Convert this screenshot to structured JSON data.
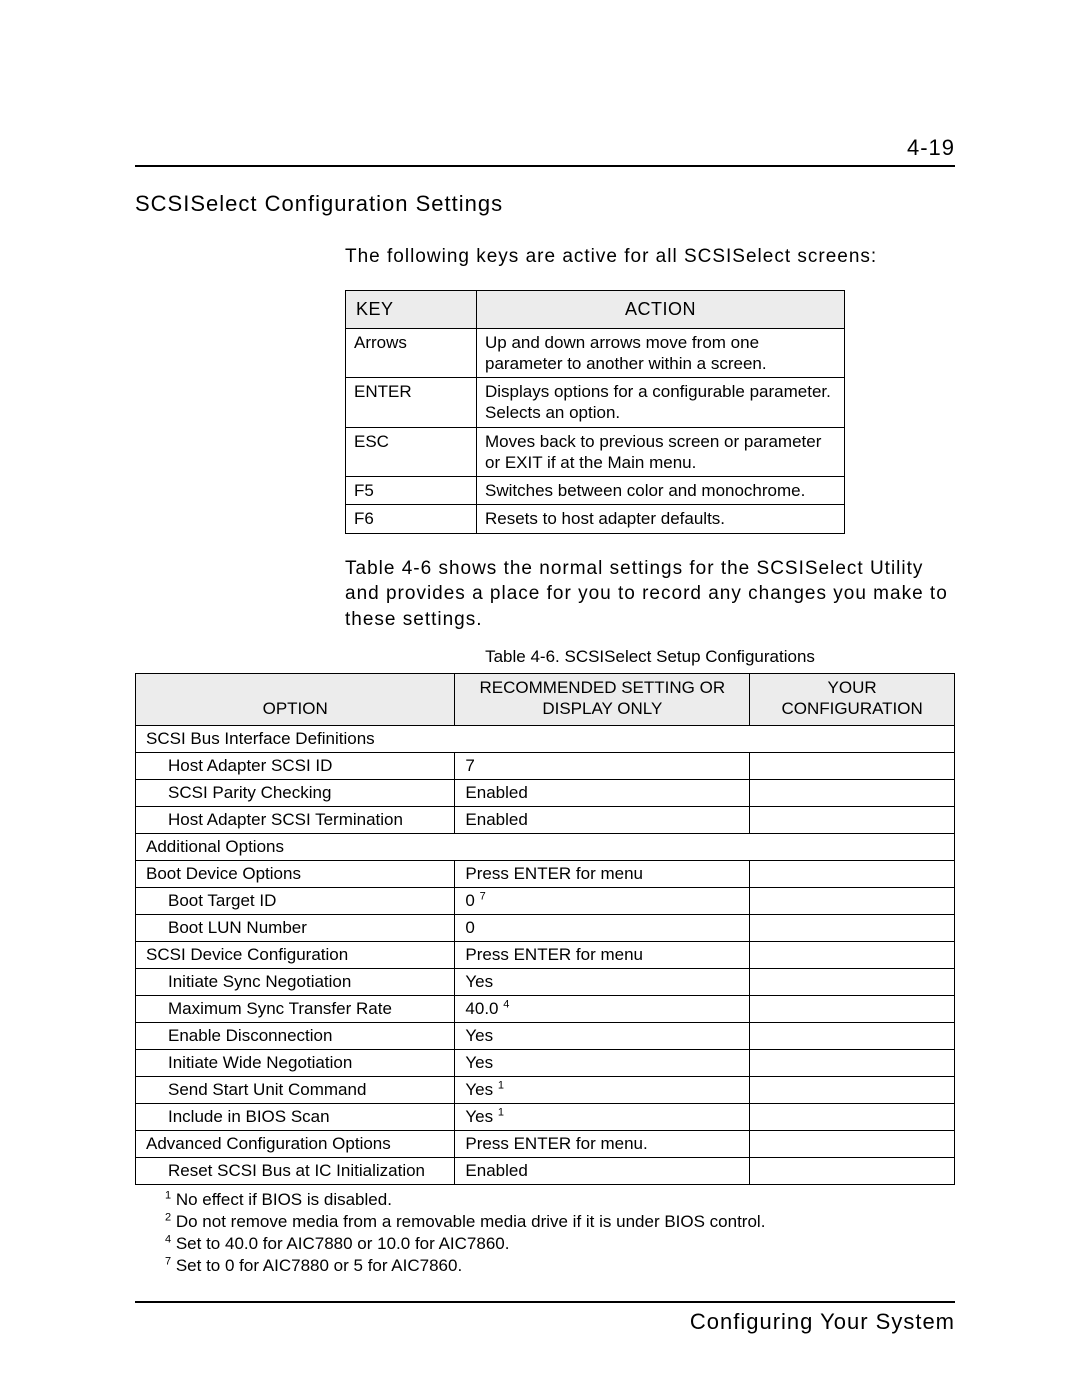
{
  "pageNumber": "4-19",
  "sectionTitle": "SCSISelect Configuration Settings",
  "introText": "The following keys are active for all SCSISelect screens:",
  "keyTable": {
    "headers": {
      "key": "KEY",
      "action": "ACTION"
    },
    "rows": [
      {
        "key": "Arrows",
        "action": "Up and down arrows move from one parameter to another within a screen."
      },
      {
        "key": "ENTER",
        "action": "Displays options for a configurable parameter. Selects an option."
      },
      {
        "key": "ESC",
        "action": "Moves back to previous screen or parameter or EXIT if at the Main menu."
      },
      {
        "key": "F5",
        "action": "Switches between color and monochrome."
      },
      {
        "key": "F6",
        "action": "Resets to host adapter defaults."
      }
    ]
  },
  "midText": "Table 4-6 shows the normal settings for the SCSISelect Utility and provides a place for you to record any changes you make to these settings.",
  "tableCaption": "Table 4-6.  SCSISelect Setup Configurations",
  "configTable": {
    "headers": {
      "option": "OPTION",
      "recommended": "RECOMMENDED SETTING OR DISPLAY ONLY",
      "your": "YOUR CONFIGURATION"
    },
    "rows": [
      {
        "type": "section",
        "option": "SCSI Bus Interface Definitions"
      },
      {
        "type": "item",
        "option": "Host Adapter SCSI ID",
        "rec": "7"
      },
      {
        "type": "item",
        "option": "SCSI Parity Checking",
        "rec": "Enabled"
      },
      {
        "type": "item",
        "option": "Host Adapter SCSI Termination",
        "rec": "Enabled"
      },
      {
        "type": "section",
        "option": "Additional Options"
      },
      {
        "type": "item-top",
        "option": "Boot Device Options",
        "rec": "Press ENTER for menu"
      },
      {
        "type": "item",
        "option": "Boot Target ID",
        "rec": "0",
        "sup": "7"
      },
      {
        "type": "item",
        "option": "Boot LUN Number",
        "rec": "0"
      },
      {
        "type": "item-top",
        "option": "SCSI Device Configuration",
        "rec": "Press ENTER for menu"
      },
      {
        "type": "item",
        "option": "Initiate Sync Negotiation",
        "rec": "Yes"
      },
      {
        "type": "item",
        "option": "Maximum Sync Transfer Rate",
        "rec": "40.0",
        "sup": "4"
      },
      {
        "type": "item",
        "option": "Enable Disconnection",
        "rec": "Yes"
      },
      {
        "type": "item",
        "option": "Initiate Wide Negotiation",
        "rec": "Yes"
      },
      {
        "type": "item",
        "option": "Send Start Unit Command",
        "rec": "Yes",
        "sup": "1"
      },
      {
        "type": "item",
        "option": "Include in BIOS Scan",
        "rec": "Yes",
        "sup": "1"
      },
      {
        "type": "item-top",
        "option": "Advanced Configuration Options",
        "rec": "Press ENTER for menu."
      },
      {
        "type": "item",
        "option": "Reset SCSI Bus at IC Initialization",
        "rec": "Enabled"
      }
    ]
  },
  "footnotes": [
    {
      "num": "1",
      "text": "No effect if BIOS is disabled."
    },
    {
      "num": "2",
      "text": "Do not remove media from a removable media drive if it is under BIOS control."
    },
    {
      "num": "4",
      "text": "Set to 40.0 for AIC7880 or 10.0 for AIC7860."
    },
    {
      "num": "7",
      "text": "Set to 0 for AIC7880 or 5 for AIC7860."
    }
  ],
  "footerTitle": "Configuring Your System"
}
